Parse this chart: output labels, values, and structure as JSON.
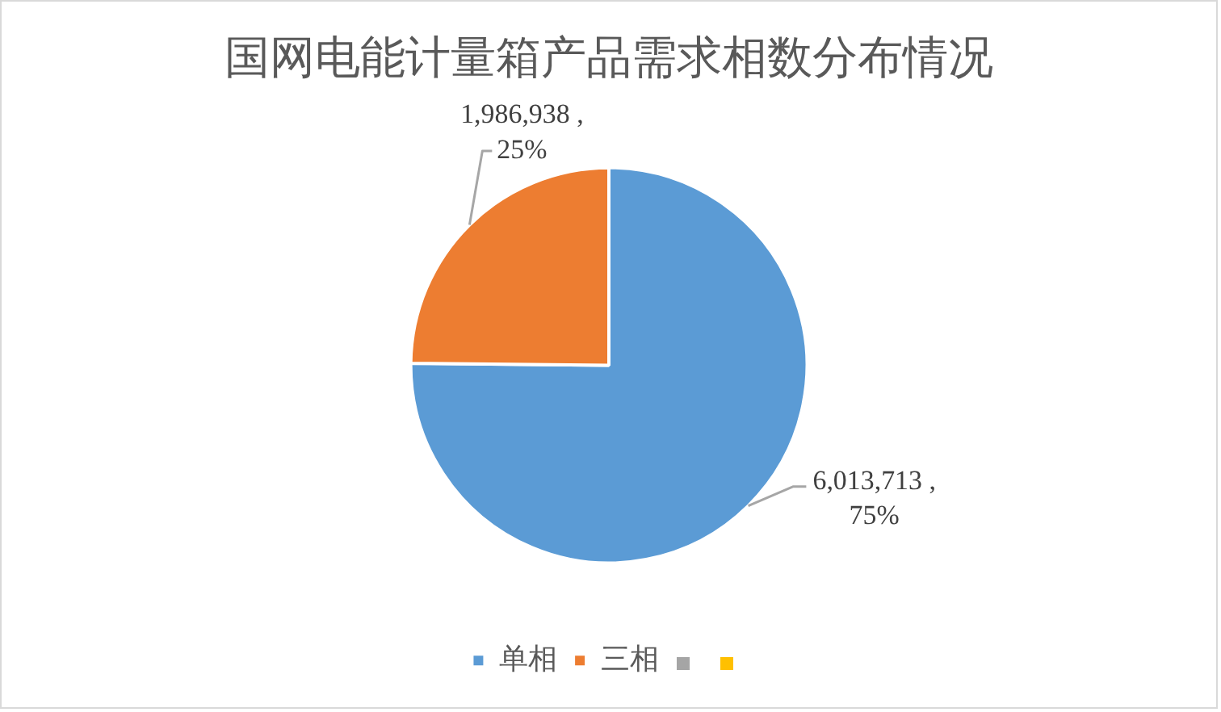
{
  "chart_data": {
    "type": "pie",
    "title": "国网电能计量箱产品需求相数分布情况",
    "categories": [
      "单相",
      "三相",
      null,
      null
    ],
    "values": [
      6013713,
      1986938,
      null,
      null
    ],
    "colors": [
      "#5b9bd5",
      "#ed7d31",
      "#a5a5a5",
      "#ffc000"
    ],
    "value_labels": [
      "6,013,713 ,\n75%",
      "1,986,938 ,\n25%",
      null,
      null
    ],
    "legend": "bottom"
  }
}
